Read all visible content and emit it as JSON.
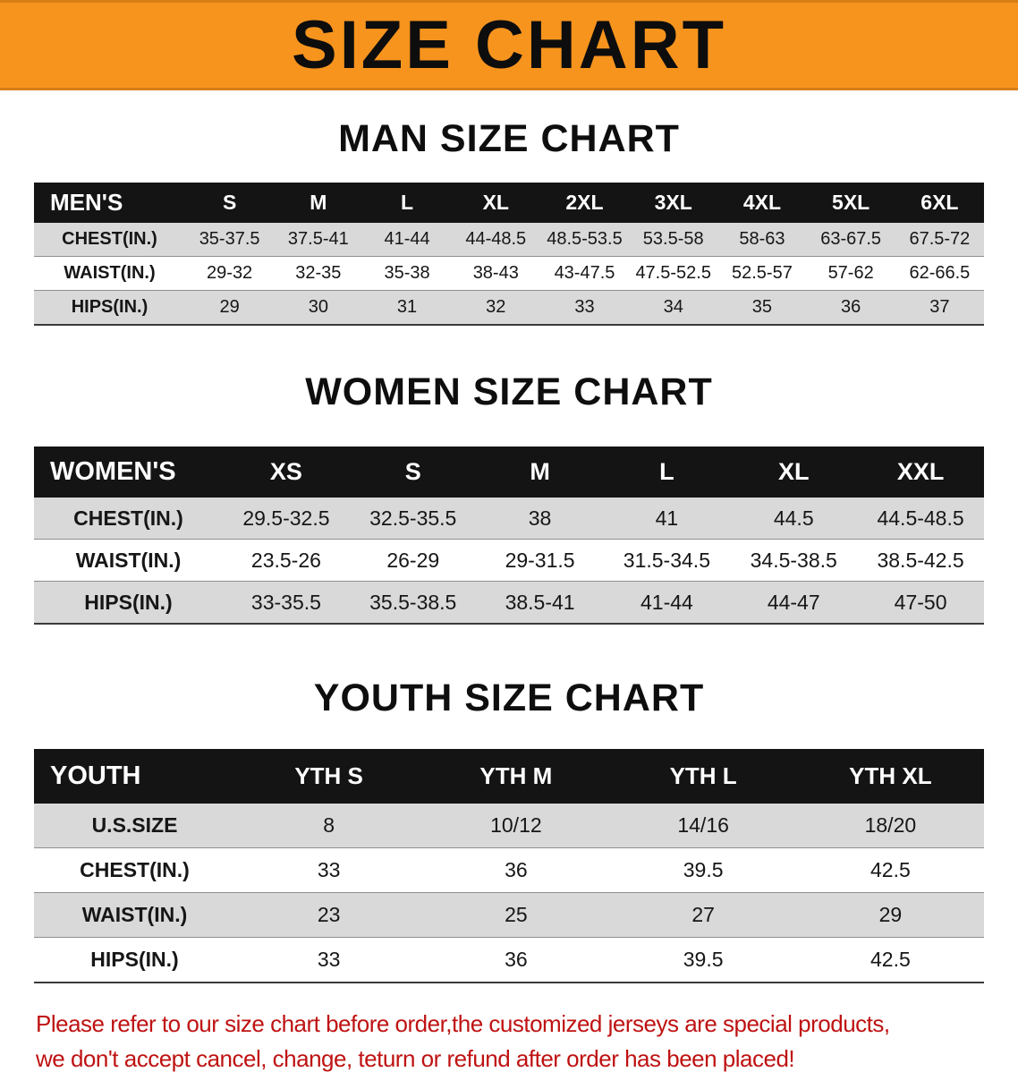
{
  "banner": {
    "title": "SIZE CHART"
  },
  "men": {
    "heading": "MAN SIZE CHART",
    "header": [
      "MEN'S",
      "S",
      "M",
      "L",
      "XL",
      "2XL",
      "3XL",
      "4XL",
      "5XL",
      "6XL"
    ],
    "rows": [
      [
        "CHEST(IN.)",
        "35-37.5",
        "37.5-41",
        "41-44",
        "44-48.5",
        "48.5-53.5",
        "53.5-58",
        "58-63",
        "63-67.5",
        "67.5-72"
      ],
      [
        "WAIST(IN.)",
        "29-32",
        "32-35",
        "35-38",
        "38-43",
        "43-47.5",
        "47.5-52.5",
        "52.5-57",
        "57-62",
        "62-66.5"
      ],
      [
        "HIPS(IN.)",
        "29",
        "30",
        "31",
        "32",
        "33",
        "34",
        "35",
        "36",
        "37"
      ]
    ]
  },
  "women": {
    "heading": "WOMEN SIZE CHART",
    "header": [
      "WOMEN'S",
      "XS",
      "S",
      "M",
      "L",
      "XL",
      "XXL"
    ],
    "rows": [
      [
        "CHEST(IN.)",
        "29.5-32.5",
        "32.5-35.5",
        "38",
        "41",
        "44.5",
        "44.5-48.5"
      ],
      [
        "WAIST(IN.)",
        "23.5-26",
        "26-29",
        "29-31.5",
        "31.5-34.5",
        "34.5-38.5",
        "38.5-42.5"
      ],
      [
        "HIPS(IN.)",
        "33-35.5",
        "35.5-38.5",
        "38.5-41",
        "41-44",
        "44-47",
        "47-50"
      ]
    ]
  },
  "youth": {
    "heading": "YOUTH SIZE CHART",
    "header": [
      "YOUTH",
      "YTH S",
      "YTH M",
      "YTH L",
      "YTH XL"
    ],
    "rows": [
      [
        "U.S.SIZE",
        "8",
        "10/12",
        "14/16",
        "18/20"
      ],
      [
        "CHEST(IN.)",
        "33",
        "36",
        "39.5",
        "42.5"
      ],
      [
        "WAIST(IN.)",
        "23",
        "25",
        "27",
        "29"
      ],
      [
        "HIPS(IN.)",
        "33",
        "36",
        "39.5",
        "42.5"
      ]
    ]
  },
  "footer": {
    "line1": "Please refer to our size chart before order,the customized jerseys are special products,",
    "line2": "we don't accept cancel, change, teturn or refund after order has been placed!"
  },
  "colors": {
    "banner_bg": "#f7941e",
    "table_header_bg": "#141414",
    "row_stripe": "#d9d9d9",
    "notice_red": "#bf1212"
  }
}
